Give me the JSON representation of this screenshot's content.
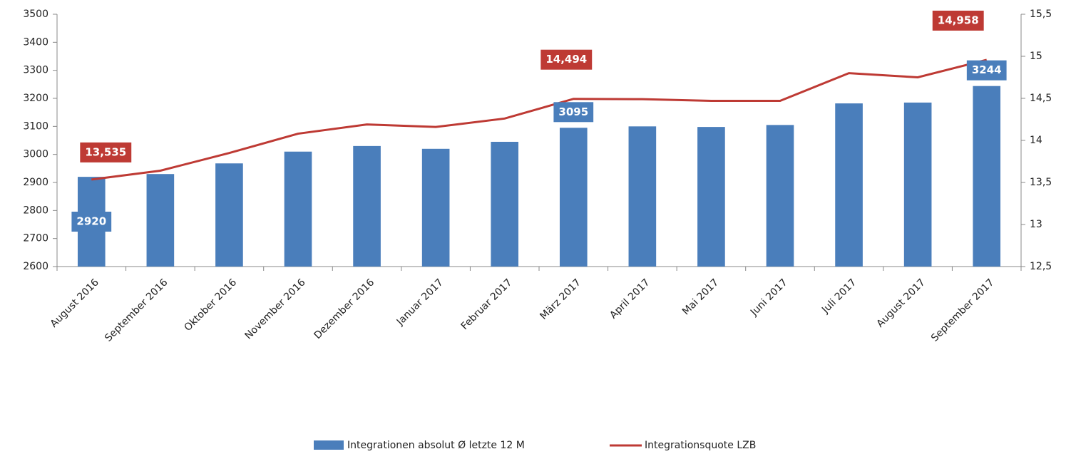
{
  "chart_data": {
    "type": "bar_line",
    "categories": [
      "August 2016",
      "September 2016",
      "Oktober 2016",
      "November 2016",
      "Dezember 2016",
      "Januar 2017",
      "Februar 2017",
      "März 2017",
      "April 2017",
      "Mai 2017",
      "Juni 2017",
      "Juli 2017",
      "August 2017",
      "September 2017"
    ],
    "series": [
      {
        "name": "Integrationen absolut Ø letzte 12 M",
        "type": "bar",
        "color": "#4a7ebb",
        "values": [
          2920,
          2930,
          2968,
          3010,
          3030,
          3020,
          3045,
          3095,
          3100,
          3098,
          3105,
          3182,
          3185,
          3244
        ],
        "value_labels": [
          "2920",
          null,
          null,
          null,
          null,
          null,
          null,
          "3095",
          null,
          null,
          null,
          null,
          null,
          "3244"
        ]
      },
      {
        "name": "Integrationsquote LZB",
        "type": "line",
        "axis": "y2",
        "color": "#be3a34",
        "values": [
          13.535,
          13.64,
          13.85,
          14.08,
          14.19,
          14.16,
          14.26,
          14.494,
          14.49,
          14.47,
          14.47,
          14.8,
          14.75,
          14.958
        ],
        "value_labels": [
          "13,535",
          null,
          null,
          null,
          null,
          null,
          null,
          "14,494",
          null,
          null,
          null,
          null,
          null,
          "14,958"
        ]
      }
    ],
    "ylim": [
      2600,
      3500
    ],
    "yticks": [
      2600,
      2700,
      2800,
      2900,
      3000,
      3100,
      3200,
      3300,
      3400,
      3500
    ],
    "y2lim": [
      12.5,
      15.5
    ],
    "y2ticks": [
      {
        "value": 12.5,
        "label": "12,5"
      },
      13,
      {
        "value": 13.5,
        "label": "13,5"
      },
      14,
      {
        "value": 14.5,
        "label": "14,5"
      },
      15,
      {
        "value": 15.5,
        "label": "15,5"
      }
    ],
    "legend": "bottom"
  }
}
